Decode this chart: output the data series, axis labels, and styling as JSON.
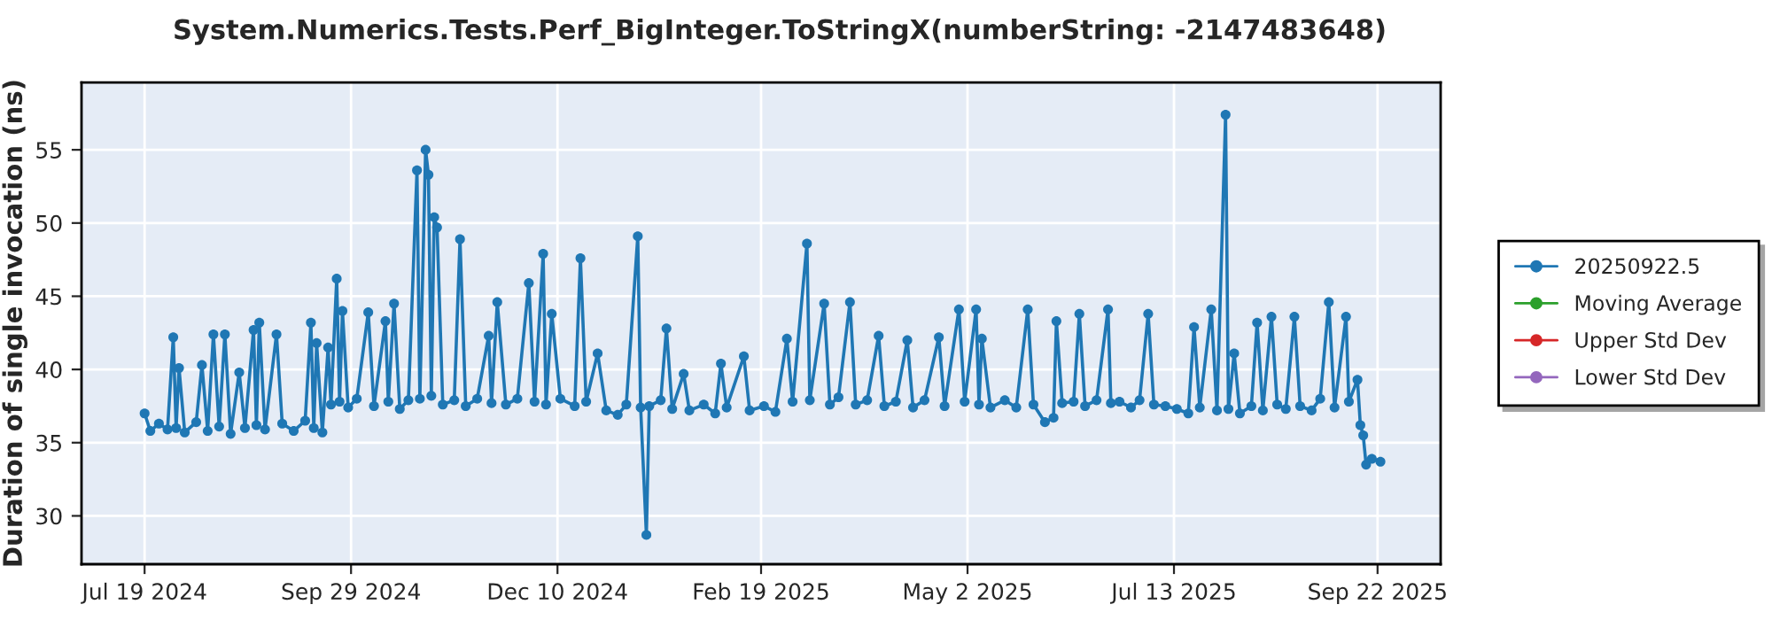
{
  "chart_data": {
    "type": "line",
    "title": "System.Numerics.Tests.Perf_BigInteger.ToStringX(numberString: -2147483648)",
    "ylabel": "Duration of single invocation (ns)",
    "xlim": [
      "2024-06-27",
      "2025-10-14"
    ],
    "ylim": [
      26.7,
      59.6
    ],
    "xticks": [
      {
        "value": "2024-07-19",
        "label": "Jul 19 2024"
      },
      {
        "value": "2024-09-29",
        "label": "Sep 29 2024"
      },
      {
        "value": "2024-12-10",
        "label": "Dec 10 2024"
      },
      {
        "value": "2025-02-19",
        "label": "Feb 19 2025"
      },
      {
        "value": "2025-05-02",
        "label": "May 2 2025"
      },
      {
        "value": "2025-07-13",
        "label": "Jul 13 2025"
      },
      {
        "value": "2025-09-22",
        "label": "Sep 22 2025"
      }
    ],
    "yticks": [
      30,
      35,
      40,
      45,
      50,
      55
    ],
    "grid": true,
    "legend": "right",
    "marker": "circle",
    "line_style": "solid",
    "series": [
      {
        "name": "20250922.5",
        "color": "#1f77b4",
        "x": [
          "2024-07-19",
          "2024-07-21",
          "2024-07-24",
          "2024-07-27",
          "2024-07-29",
          "2024-07-30",
          "2024-07-31",
          "2024-08-02",
          "2024-08-06",
          "2024-08-08",
          "2024-08-10",
          "2024-08-12",
          "2024-08-14",
          "2024-08-16",
          "2024-08-18",
          "2024-08-21",
          "2024-08-23",
          "2024-08-26",
          "2024-08-27",
          "2024-08-28",
          "2024-08-30",
          "2024-09-03",
          "2024-09-05",
          "2024-09-09",
          "2024-09-13",
          "2024-09-15",
          "2024-09-16",
          "2024-09-17",
          "2024-09-19",
          "2024-09-21",
          "2024-09-22",
          "2024-09-24",
          "2024-09-25",
          "2024-09-26",
          "2024-09-28",
          "2024-10-01",
          "2024-10-05",
          "2024-10-07",
          "2024-10-11",
          "2024-10-12",
          "2024-10-14",
          "2024-10-16",
          "2024-10-19",
          "2024-10-22",
          "2024-10-23",
          "2024-10-25",
          "2024-10-26",
          "2024-10-27",
          "2024-10-28",
          "2024-10-29",
          "2024-10-31",
          "2024-11-04",
          "2024-11-06",
          "2024-11-08",
          "2024-11-12",
          "2024-11-16",
          "2024-11-17",
          "2024-11-19",
          "2024-11-22",
          "2024-11-26",
          "2024-11-30",
          "2024-12-02",
          "2024-12-05",
          "2024-12-06",
          "2024-12-08",
          "2024-12-11",
          "2024-12-16",
          "2024-12-18",
          "2024-12-20",
          "2024-12-24",
          "2024-12-27",
          "2024-12-31",
          "2025-01-03",
          "2025-01-07",
          "2025-01-08",
          "2025-01-10",
          "2025-01-11",
          "2025-01-15",
          "2025-01-17",
          "2025-01-19",
          "2025-01-23",
          "2025-01-25",
          "2025-01-30",
          "2025-02-03",
          "2025-02-05",
          "2025-02-07",
          "2025-02-13",
          "2025-02-15",
          "2025-02-20",
          "2025-02-24",
          "2025-02-28",
          "2025-03-02",
          "2025-03-07",
          "2025-03-08",
          "2025-03-13",
          "2025-03-15",
          "2025-03-18",
          "2025-03-22",
          "2025-03-24",
          "2025-03-28",
          "2025-04-01",
          "2025-04-03",
          "2025-04-07",
          "2025-04-11",
          "2025-04-13",
          "2025-04-17",
          "2025-04-22",
          "2025-04-24",
          "2025-04-29",
          "2025-05-01",
          "2025-05-05",
          "2025-05-06",
          "2025-05-07",
          "2025-05-10",
          "2025-05-15",
          "2025-05-19",
          "2025-05-23",
          "2025-05-25",
          "2025-05-29",
          "2025-06-01",
          "2025-06-02",
          "2025-06-04",
          "2025-06-08",
          "2025-06-10",
          "2025-06-12",
          "2025-06-16",
          "2025-06-20",
          "2025-06-21",
          "2025-06-24",
          "2025-06-28",
          "2025-07-01",
          "2025-07-04",
          "2025-07-06",
          "2025-07-10",
          "2025-07-14",
          "2025-07-18",
          "2025-07-20",
          "2025-07-22",
          "2025-07-26",
          "2025-07-28",
          "2025-07-31",
          "2025-08-01",
          "2025-08-03",
          "2025-08-05",
          "2025-08-09",
          "2025-08-11",
          "2025-08-13",
          "2025-08-16",
          "2025-08-18",
          "2025-08-21",
          "2025-08-24",
          "2025-08-26",
          "2025-08-30",
          "2025-09-02",
          "2025-09-05",
          "2025-09-07",
          "2025-09-11",
          "2025-09-12",
          "2025-09-15",
          "2025-09-16",
          "2025-09-17",
          "2025-09-18",
          "2025-09-20",
          "2025-09-23"
        ],
        "values": [
          37.0,
          35.8,
          36.3,
          35.9,
          42.2,
          36.0,
          40.1,
          35.7,
          36.4,
          40.3,
          35.8,
          42.4,
          36.1,
          42.4,
          35.6,
          39.8,
          36.0,
          42.7,
          36.2,
          43.2,
          35.9,
          42.4,
          36.3,
          35.8,
          36.5,
          43.2,
          36.0,
          41.8,
          35.7,
          41.5,
          37.6,
          46.2,
          37.8,
          44.0,
          37.4,
          38.0,
          43.9,
          37.5,
          43.3,
          37.8,
          44.5,
          37.3,
          37.9,
          53.6,
          38.0,
          55.0,
          53.3,
          38.2,
          50.4,
          49.7,
          37.6,
          37.9,
          48.9,
          37.5,
          38.0,
          42.3,
          37.7,
          44.6,
          37.6,
          38.0,
          45.9,
          37.8,
          47.9,
          37.6,
          43.8,
          38.0,
          37.5,
          47.6,
          37.8,
          41.1,
          37.2,
          36.9,
          37.6,
          49.1,
          37.4,
          28.7,
          37.5,
          37.9,
          42.8,
          37.3,
          39.7,
          37.2,
          37.6,
          37.0,
          40.4,
          37.4,
          40.9,
          37.2,
          37.5,
          37.1,
          42.1,
          37.8,
          48.6,
          37.9,
          44.5,
          37.6,
          38.1,
          44.6,
          37.6,
          37.9,
          42.3,
          37.5,
          37.8,
          42.0,
          37.4,
          37.9,
          42.2,
          37.5,
          44.1,
          37.8,
          44.1,
          37.6,
          42.1,
          37.4,
          37.9,
          37.4,
          44.1,
          37.6,
          36.4,
          36.7,
          43.3,
          37.7,
          37.8,
          43.8,
          37.5,
          37.9,
          44.1,
          37.7,
          37.8,
          37.4,
          37.9,
          43.8,
          37.6,
          37.5,
          37.3,
          37.0,
          42.9,
          37.4,
          44.1,
          37.2,
          57.4,
          37.3,
          41.1,
          37.0,
          37.5,
          43.2,
          37.2,
          43.6,
          37.6,
          37.3,
          43.6,
          37.5,
          37.2,
          38.0,
          44.6,
          37.4,
          43.6,
          37.8,
          39.3,
          36.2,
          35.5,
          33.5,
          33.9,
          33.7
        ]
      },
      {
        "name": "Moving Average",
        "color": "#2ca02c"
      },
      {
        "name": "Upper Std Dev",
        "color": "#d62728"
      },
      {
        "name": "Lower Std Dev",
        "color": "#9467bd"
      }
    ]
  }
}
